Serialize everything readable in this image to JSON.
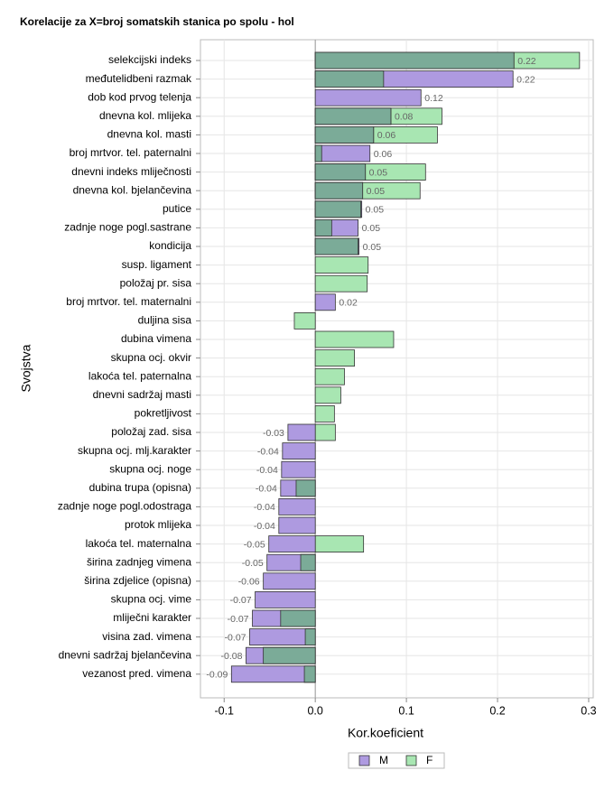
{
  "chart_data": {
    "type": "bar",
    "orientation": "horizontal",
    "title": "Korelacije za X=broj somatskih stanica po spolu - hol",
    "x_label": "Kor.koeficient",
    "y_label": "Svojstva",
    "categories": [
      "selekcijski indeks",
      "međutelidbeni razmak",
      "dob kod prvog telenja",
      "dnevna kol. mlijeka",
      "dnevna kol. masti",
      "broj mrtvor. tel. paternalni",
      "dnevni indeks mliječnosti",
      "dnevna kol. bjelančevina",
      "putice",
      "zadnje noge pogl.sastrane",
      "kondicija",
      "susp. ligament",
      "položaj pr. sisa",
      "broj mrtvor. tel. maternalni",
      "duljina sisa",
      "dubina vimena",
      "skupna ocj. okvir",
      "lakoća tel. paternalna",
      "dnevni sadržaj masti",
      "pokretljivost",
      "položaj zad. sisa",
      "skupna ocj. mlj.karakter",
      "skupna ocj. noge",
      "dubina trupa (opisna)",
      "zadnje noge pogl.odostraga",
      "protok mlijeka",
      "lakoća tel. maternalna",
      "širina zadnjeg vimena",
      "širina zdjelice (opisna)",
      "skupna ocj. vime",
      "mliječni karakter",
      "visina zad. vimena",
      "dnevni sadržaj bjelančevina",
      "vezanost pred. vimena"
    ],
    "series": [
      {
        "name": "M",
        "color": "#ae9ae0",
        "values": [
          0.218,
          0.217,
          0.116,
          0.083,
          0.064,
          0.06,
          0.055,
          0.052,
          0.051,
          0.047,
          0.048,
          null,
          null,
          0.022,
          null,
          null,
          null,
          null,
          null,
          null,
          -0.03,
          -0.036,
          -0.037,
          -0.038,
          -0.04,
          -0.04,
          -0.051,
          -0.053,
          -0.057,
          -0.066,
          -0.069,
          -0.072,
          -0.076,
          -0.092
        ],
        "value_labels": [
          "0.22",
          "0.22",
          "0.12",
          "0.08",
          "0.06",
          "0.06",
          "0.05",
          "0.05",
          "0.05",
          "0.05",
          "0.05",
          null,
          null,
          "0.02",
          null,
          null,
          null,
          null,
          null,
          null,
          "-0.03",
          "-0.04",
          "-0.04",
          "-0.04",
          "-0.04",
          "-0.04",
          "-0.05",
          "-0.05",
          "-0.06",
          "-0.07",
          "-0.07",
          "-0.07",
          "-0.08",
          "-0.09"
        ]
      },
      {
        "name": "F",
        "color": "#a8e6b2",
        "values": [
          0.29,
          0.075,
          null,
          0.139,
          0.134,
          0.007,
          0.121,
          0.115,
          0.05,
          0.018,
          0.047,
          0.058,
          0.057,
          null,
          -0.023,
          0.086,
          0.043,
          0.032,
          0.028,
          0.021,
          0.022,
          null,
          null,
          -0.021,
          null,
          null,
          0.053,
          -0.016,
          null,
          null,
          -0.038,
          -0.011,
          -0.057,
          -0.012
        ]
      }
    ],
    "overlap_color": "#7bab98",
    "xlim": [
      -0.126,
      0.305
    ],
    "xticks": [
      -0.1,
      {
        "value": 0,
        "label": "0.0"
      },
      0.1,
      0.2,
      0.3
    ],
    "grid": true
  }
}
